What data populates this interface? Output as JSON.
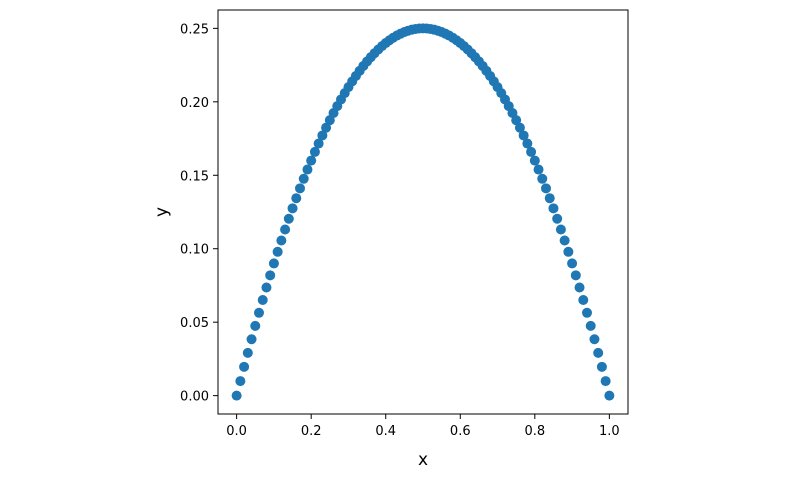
{
  "chart_data": {
    "type": "scatter",
    "xlabel": "x",
    "ylabel": "y",
    "color": "#1f77b4",
    "x": [
      0,
      0.01,
      0.02,
      0.03,
      0.04,
      0.05,
      0.06,
      0.07,
      0.08,
      0.09,
      0.1,
      0.11,
      0.12,
      0.13,
      0.14,
      0.15,
      0.16,
      0.17,
      0.18,
      0.19,
      0.2,
      0.21,
      0.22,
      0.23,
      0.24,
      0.25,
      0.26,
      0.27,
      0.28,
      0.29,
      0.3,
      0.31,
      0.32,
      0.33,
      0.34,
      0.35,
      0.36,
      0.37,
      0.38,
      0.39,
      0.4,
      0.41,
      0.42,
      0.43,
      0.44,
      0.45,
      0.46,
      0.47,
      0.48,
      0.49,
      0.5,
      0.51,
      0.52,
      0.53,
      0.54,
      0.55,
      0.56,
      0.57,
      0.58,
      0.59,
      0.6,
      0.61,
      0.62,
      0.63,
      0.64,
      0.65,
      0.66,
      0.67,
      0.68,
      0.69,
      0.7,
      0.71,
      0.72,
      0.73,
      0.74,
      0.75,
      0.76,
      0.77,
      0.78,
      0.79,
      0.8,
      0.81,
      0.82,
      0.83,
      0.84,
      0.85,
      0.86,
      0.87,
      0.88,
      0.89,
      0.9,
      0.91,
      0.92,
      0.93,
      0.94,
      0.95,
      0.96,
      0.97,
      0.98,
      0.99,
      1
    ],
    "values": [
      0,
      0.0099,
      0.0196,
      0.0291,
      0.0384,
      0.0475,
      0.0564,
      0.0651,
      0.0736,
      0.0819,
      0.09,
      0.0979,
      0.1056,
      0.1131,
      0.1204,
      0.1275,
      0.1344,
      0.1411,
      0.1476,
      0.1539,
      0.16,
      0.1659,
      0.1716,
      0.1771,
      0.1824,
      0.1875,
      0.1924,
      0.1971,
      0.2016,
      0.2059,
      0.21,
      0.2139,
      0.2176,
      0.2211,
      0.2244,
      0.2275,
      0.2304,
      0.2331,
      0.2356,
      0.2379,
      0.24,
      0.2419,
      0.2436,
      0.2451,
      0.2464,
      0.2475,
      0.2484,
      0.2491,
      0.2496,
      0.2499,
      0.25,
      0.2499,
      0.2496,
      0.2491,
      0.2484,
      0.2475,
      0.2464,
      0.2451,
      0.2436,
      0.2419,
      0.24,
      0.2379,
      0.2356,
      0.2331,
      0.2304,
      0.2275,
      0.2244,
      0.2211,
      0.2176,
      0.2139,
      0.21,
      0.2059,
      0.2016,
      0.1971,
      0.1924,
      0.1875,
      0.1824,
      0.1771,
      0.1716,
      0.1659,
      0.16,
      0.1539,
      0.1476,
      0.1411,
      0.1344,
      0.1275,
      0.1204,
      0.1131,
      0.1056,
      0.0979,
      0.09,
      0.0819,
      0.0736,
      0.0651,
      0.0564,
      0.0475,
      0.0384,
      0.0291,
      0.0196,
      0.0099,
      0
    ],
    "xlim": [
      -0.05,
      1.05
    ],
    "xticks": [
      {
        "value": 0,
        "label": "0.0"
      },
      0.2,
      0.4,
      0.6,
      0.8,
      {
        "value": 1,
        "label": "1.0"
      }
    ],
    "ylim": [
      -0.0125,
      0.2625
    ],
    "yticks": [
      {
        "value": 0,
        "label": "0.00"
      },
      0.05,
      {
        "value": 0.1,
        "label": "0.10"
      },
      0.15,
      {
        "value": 0.2,
        "label": "0.20"
      },
      0.25
    ]
  }
}
